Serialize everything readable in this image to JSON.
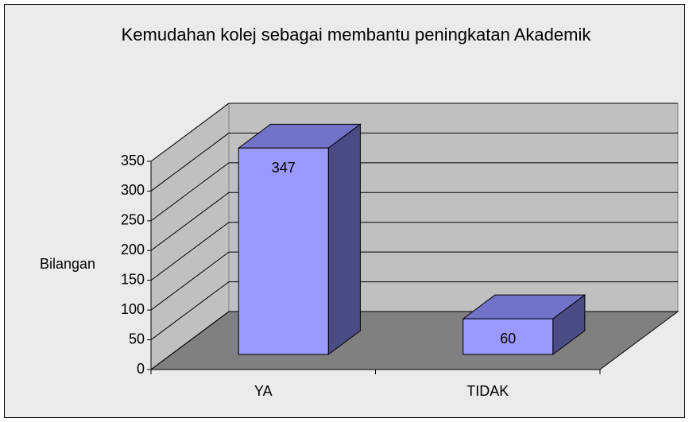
{
  "chart_data": {
    "type": "bar",
    "title": "Kemudahan kolej sebagai membantu peningkatan Akademik",
    "y_label": "Bilangan",
    "categories": [
      "YA",
      "TIDAK"
    ],
    "values": [
      347,
      60
    ],
    "color": "#9999ff",
    "ylim": [
      0,
      350
    ],
    "yticks": [
      0,
      50,
      100,
      150,
      200,
      250,
      300,
      350
    ],
    "grid": true
  }
}
